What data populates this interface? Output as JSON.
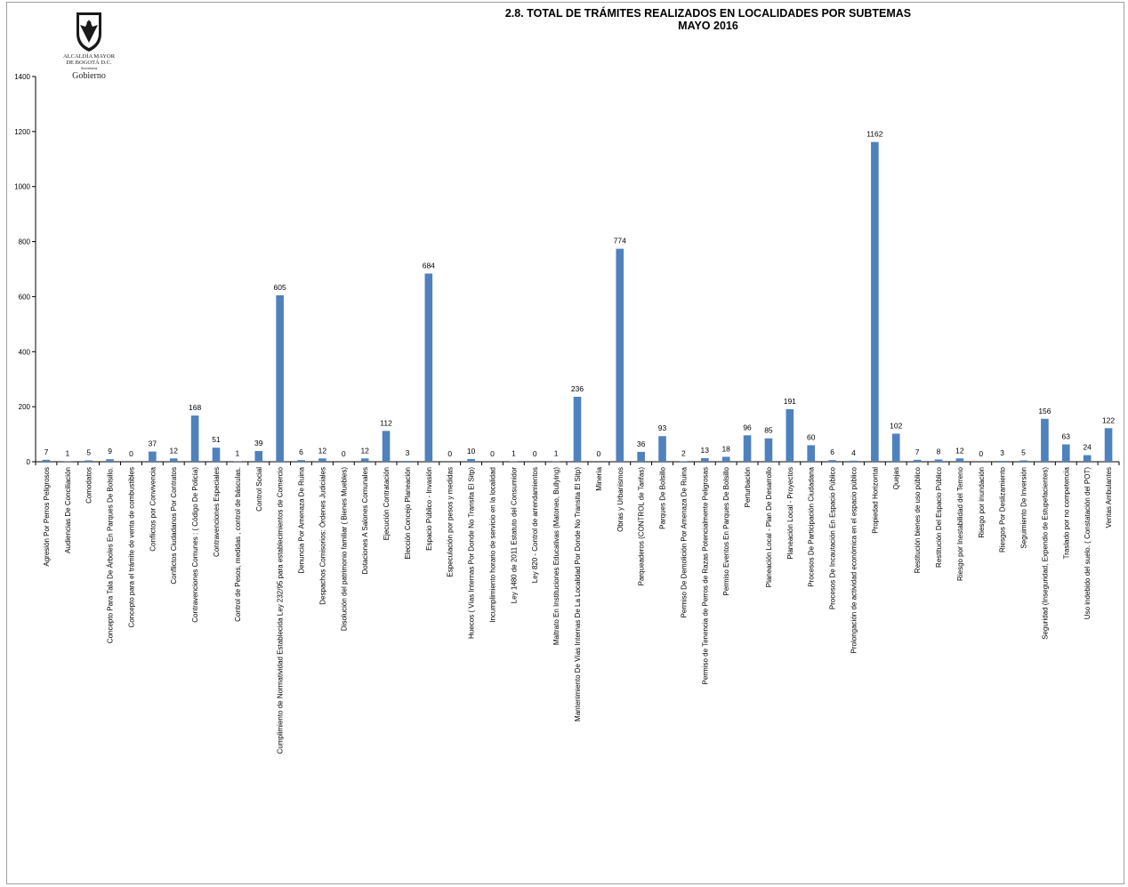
{
  "header": {
    "title_line1": "2.8.   TOTAL DE TRÁMITES REALIZADOS EN LOCALIDADES POR SUBTEMAS",
    "title_line2": "MAYO 2016",
    "logo_line1": "ALCALDÍA MAYOR",
    "logo_line2": "DE BOGOTÁ D.C.",
    "logo_line3": "Secretaría",
    "logo_line4": "Gobierno"
  },
  "colors": {
    "bar": "#4f81bd",
    "axis": "#000000"
  },
  "chart_data": {
    "type": "bar",
    "title": "2.8.   TOTAL DE TRÁMITES REALIZADOS EN LOCALIDADES POR SUBTEMAS",
    "subtitle": "MAYO 2016",
    "ylim": [
      0,
      1400
    ],
    "yticks": [
      0,
      200,
      400,
      600,
      800,
      1000,
      1200,
      1400
    ],
    "grid": false,
    "legend": "none",
    "categories": [
      "Agresión Por Perros Peligrosos",
      "Audiencias De Conciliación",
      "Comodatos",
      "Concepto Para  Tala De Árboles En Parques De Bolsillo.",
      "Concepto para el trámite de venta de combustibles",
      "Conflictos  por Convivencia",
      "Conflictos Ciudadanos  Por Contratos",
      "Contravenciones  Comunes : ( Código De Policía)",
      "Contravenciones Especiales",
      "Control de Pesos, medidas , control de básculas.",
      "Control Social",
      "Cumplimiento de Normatividad Establecida Ley 232/95 para  establecimientos de Comercio",
      "Denuncia Por Amenaza De Ruina",
      "Despachos Comisorios:  Órdenes Judiciales",
      "Disolución del patrimonio familiar ( Bienes Muebles)",
      "Dotaciones A Salones Comunales",
      "Ejecución Contratación",
      "Elección Concejo Planeación",
      "Espacio Público - Invasión",
      "Especulación por pesos y medidas",
      "Huecos ( Vías Internas Por Donde No Transita El Sitp)",
      "Incumplimiento horario de servicio en la localidad",
      "Ley 1480 de 2011 Estatuto del Consumidor",
      "Ley 820 - Control de arrendamientos",
      "Maltrato En  Instituciones Educativas (Matoneo, Bullying)",
      "Mantenimiento De  Vías Internas De La Localidad Por Donde No Transita El Sitp)",
      "Minería",
      "Obras y Urbanismos",
      "Parqueaderos (CONTROL de Tarifas)",
      "Parques De Bolsillo",
      "Permiso  De Demolición Por Amenaza De Ruina",
      "Permiso de Tenencia de Perros  de Razas Potencialmente Peligrosas",
      "Permiso Eventos  En Parques De Bolsillo",
      "Perturbación",
      "Planeación Local - Plan De Desarrollo",
      "Planeación Local - Proyectos",
      "Procesos  De  Participación Ciudadana",
      "Procesos De Incautación En Espacio Público",
      "Prolongación de actividad económica en el espacio público",
      "Propiedad Horizontal",
      "Quejas",
      "Restitución bienes de uso público",
      "Restitución Del Espacio Público",
      "Riesgo por Inestabilidad del Terreno",
      "Riesgo por inundación",
      "Riesgos  Por Deslizamiento",
      "Seguimiento De Inversión",
      "Seguridad (Inseguridad, Expendio de Estupefacientes)",
      "Traslado por no competencia",
      "Uso indebido del suelo. ( Constatación del POT)",
      "Ventas Ambulantes"
    ],
    "values": [
      7,
      1,
      5,
      9,
      0,
      37,
      12,
      168,
      51,
      1,
      39,
      605,
      6,
      12,
      0,
      12,
      112,
      3,
      684,
      0,
      10,
      0,
      1,
      0,
      1,
      236,
      0,
      774,
      36,
      93,
      2,
      13,
      18,
      96,
      85,
      191,
      60,
      6,
      4,
      1162,
      102,
      7,
      8,
      12,
      0,
      3,
      5,
      156,
      63,
      24,
      122
    ]
  }
}
